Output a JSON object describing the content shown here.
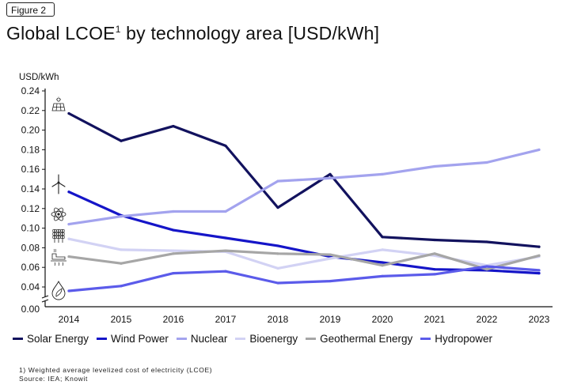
{
  "figure_label": "Figure 2",
  "title_prefix": "Global LCOE",
  "title_sup": "1",
  "title_suffix": " by technology area [USD/kWh]",
  "footnote": "1) Weighted average levelized cost of electricity (LCOE)",
  "source": "Source: IEA; Knowit",
  "chart_data": {
    "type": "line",
    "title": "Global LCOE by technology area [USD/kWh]",
    "ylabel": "USD/kWh",
    "xlabel": "",
    "x": [
      2014,
      2015,
      2016,
      2017,
      2018,
      2019,
      2020,
      2021,
      2022,
      2023
    ],
    "ylim": [
      0.0,
      0.24
    ],
    "y_ticks": [
      "0.00",
      "0.04",
      "0.06",
      "0.08",
      "0.10",
      "0.12",
      "0.14",
      "0.16",
      "0.18",
      "0.20",
      "0.22",
      "0.24"
    ],
    "axis_break": "between 0.00 and 0.04",
    "grid": false,
    "legend_position": "bottom",
    "series": [
      {
        "name": "Solar Energy",
        "color": "#12125e",
        "icon": "solar-panel-icon",
        "values": [
          0.217,
          0.189,
          0.204,
          0.184,
          0.121,
          0.155,
          0.091,
          0.088,
          0.086,
          0.081
        ]
      },
      {
        "name": "Wind Power",
        "color": "#1515c8",
        "icon": "wind-turbine-icon",
        "values": [
          0.137,
          0.113,
          0.098,
          0.09,
          0.082,
          0.071,
          0.065,
          0.058,
          0.057,
          0.054
        ]
      },
      {
        "name": "Nuclear",
        "color": "#a3a3ee",
        "icon": "atom-icon",
        "values": [
          0.104,
          0.112,
          0.117,
          0.117,
          0.148,
          0.151,
          0.155,
          0.163,
          0.167,
          0.18
        ]
      },
      {
        "name": "Bioenergy",
        "color": "#d2d2f4",
        "icon": "wheat-icon",
        "values": [
          0.089,
          0.078,
          0.077,
          0.076,
          0.059,
          0.069,
          0.078,
          0.072,
          0.062,
          0.071
        ]
      },
      {
        "name": "Geothermal Energy",
        "color": "#a6a6a6",
        "icon": "geothermal-plant-icon",
        "values": [
          0.071,
          0.064,
          0.074,
          0.077,
          0.074,
          0.073,
          0.062,
          0.074,
          0.058,
          0.072
        ]
      },
      {
        "name": "Hydropower",
        "color": "#5b5bea",
        "icon": "water-drop-icon",
        "values": [
          0.036,
          0.041,
          0.054,
          0.056,
          0.044,
          0.046,
          0.051,
          0.053,
          0.061,
          0.057
        ]
      }
    ]
  }
}
